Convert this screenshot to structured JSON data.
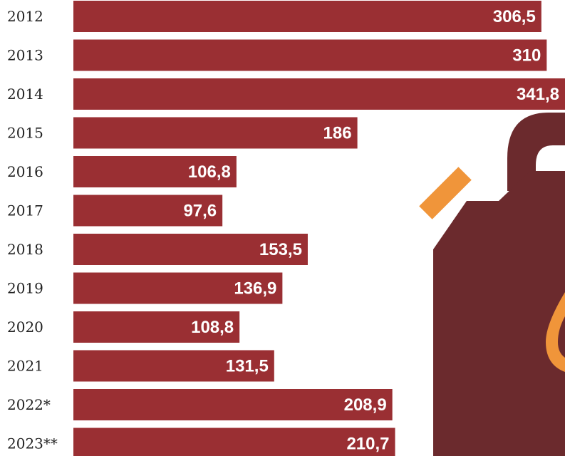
{
  "colors": {
    "bar": "#9a2f33",
    "canister": "#6b2a2d",
    "accent": "#f0953a",
    "background": "#ffffff"
  },
  "decoration": {
    "icon": "fuel-canister-icon"
  },
  "chart_data": {
    "type": "bar",
    "orientation": "horizontal",
    "title": "",
    "xlabel": "",
    "ylabel": "",
    "categories": [
      "2012",
      "2013",
      "2014",
      "2015",
      "2016",
      "2017",
      "2018",
      "2019",
      "2020",
      "2021",
      "2022*",
      "2023**"
    ],
    "values": [
      306.5,
      310,
      341.8,
      186,
      106.8,
      97.6,
      153.5,
      136.9,
      108.8,
      131.5,
      208.9,
      210.7
    ],
    "value_labels": [
      "306,5",
      "310",
      "341,8",
      "186",
      "106,8",
      "97,6",
      "153,5",
      "136,9",
      "108,8",
      "131,5",
      "208,9",
      "210,7"
    ],
    "xlim": [
      0,
      345
    ],
    "grid": false,
    "legend": "none"
  }
}
